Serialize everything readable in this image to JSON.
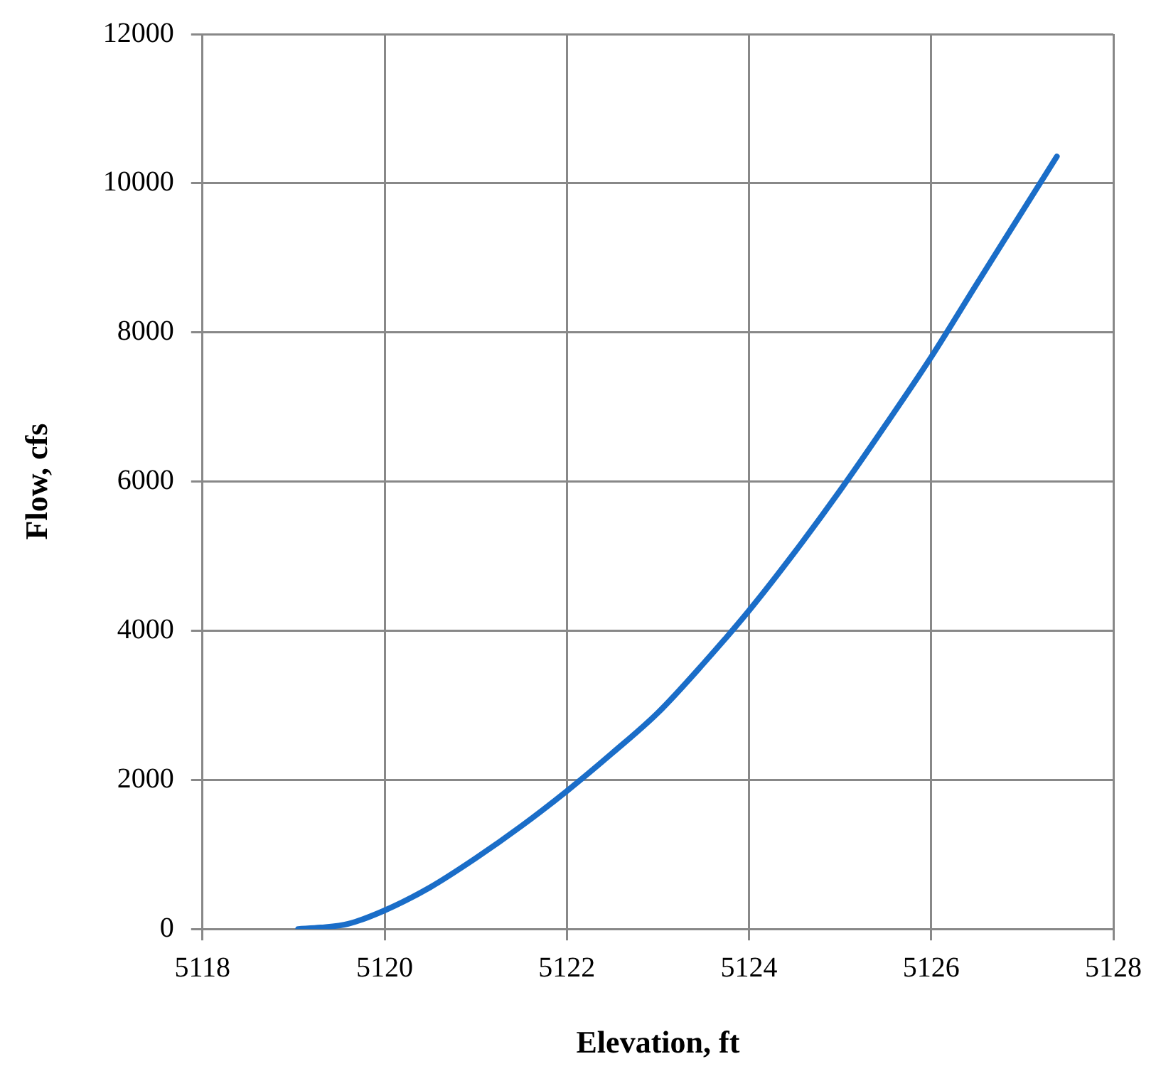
{
  "chart_data": {
    "type": "line",
    "xlabel": "Elevation, ft",
    "ylabel": "Flow, cfs",
    "x": [
      5119.05,
      5119.3,
      5119.6,
      5120,
      5120.5,
      5121,
      5121.5,
      5122,
      5122.5,
      5123,
      5123.5,
      5124,
      5124.5,
      5125,
      5125.5,
      5126,
      5126.5,
      5127,
      5127.38
    ],
    "series": [
      {
        "color": "#1a6dc8",
        "values": [
          0,
          20,
          70,
          250,
          560,
          950,
          1380,
          1850,
          2360,
          2900,
          3560,
          4270,
          5050,
          5880,
          6760,
          7670,
          8650,
          9620,
          10360
        ]
      }
    ],
    "xlim": [
      5118,
      5128
    ],
    "xticks": [
      5118,
      5120,
      5122,
      5124,
      5126,
      5128
    ],
    "ylim": [
      0,
      12000
    ],
    "yticks": [
      0,
      2000,
      4000,
      6000,
      8000,
      10000,
      12000
    ],
    "grid": true,
    "legend": false,
    "marker": "none",
    "line_style": "solid"
  }
}
